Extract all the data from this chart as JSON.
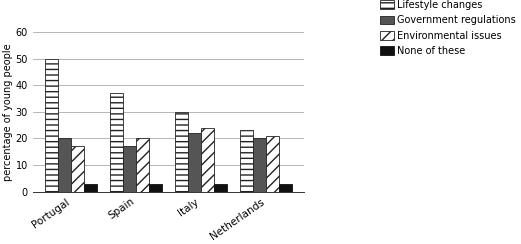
{
  "categories": [
    "Portugal",
    "Spain",
    "Italy",
    "Netherlands"
  ],
  "series": {
    "Lifestyle changes": [
      50,
      37,
      30,
      23
    ],
    "Government regulations": [
      20,
      17,
      22,
      20
    ],
    "Environmental issues": [
      17,
      20,
      24,
      21
    ],
    "None of these": [
      3,
      3,
      3,
      3
    ]
  },
  "ylabel": "percentage of young people",
  "ylim": [
    0,
    60
  ],
  "yticks": [
    0,
    10,
    20,
    30,
    40,
    50,
    60
  ],
  "bar_width": 0.2,
  "background_color": "#ffffff",
  "grid_color": "#aaaaaa",
  "hatches": [
    "---",
    "",
    "///",
    ""
  ],
  "colors": [
    "#ffffff",
    "#555555",
    "#ffffff",
    "#111111"
  ],
  "edge_colors": [
    "#222222",
    "#222222",
    "#222222",
    "#111111"
  ],
  "legend_labels": [
    "Lifestyle changes",
    "Government regulations",
    "Environmental issues",
    "None of these"
  ]
}
